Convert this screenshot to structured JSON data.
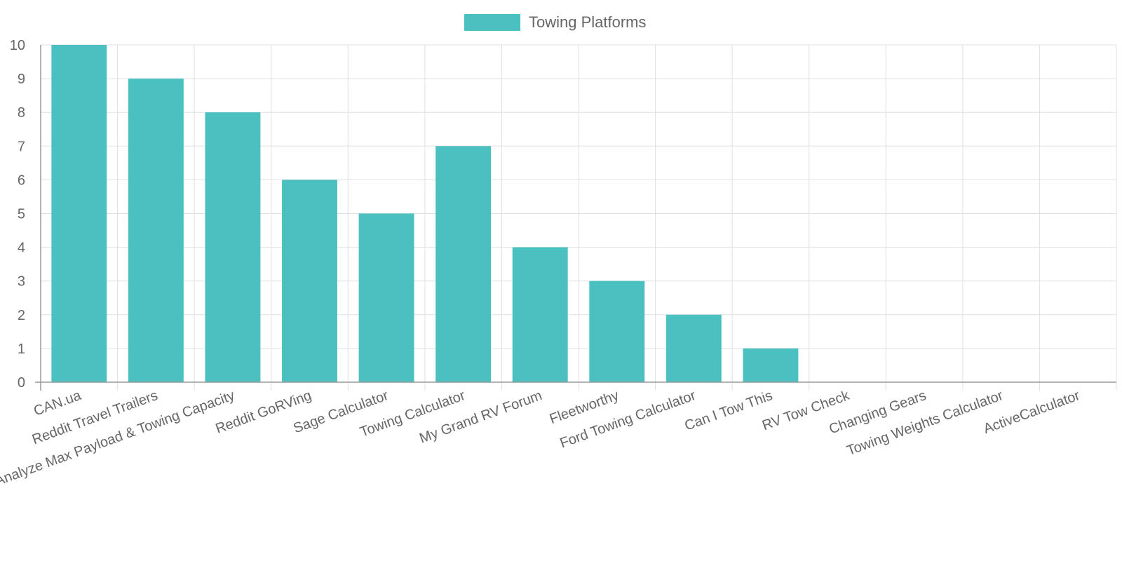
{
  "chart_data": {
    "type": "bar",
    "categories": [
      "CAN.ua",
      "Reddit Travel Trailers",
      "Analyze Max Payload & Towing Capacity",
      "Reddit GoRVing",
      "Sage Calculator",
      "Towing Calculator",
      "My Grand RV Forum",
      "Fleetworthy",
      "Ford Towing Calculator",
      "Can I Tow This",
      "RV Tow Check",
      "Changing Gears",
      "Towing Weights Calculator",
      "ActiveCalculator"
    ],
    "series": [
      {
        "name": "Towing Platforms",
        "values": [
          10,
          9,
          8,
          6,
          5,
          7,
          4,
          3,
          2,
          1,
          0,
          0,
          0,
          0
        ],
        "color": "#4bc0c0"
      }
    ],
    "ylim": [
      0,
      10
    ],
    "yticks": [
      "0",
      "1",
      "2",
      "3",
      "4",
      "5",
      "6",
      "7",
      "8",
      "9",
      "10"
    ],
    "grid": true,
    "legend_position": "top-center",
    "colors": {
      "grid": "#e0e0e0",
      "axis": "#999999",
      "text": "#666666"
    }
  }
}
